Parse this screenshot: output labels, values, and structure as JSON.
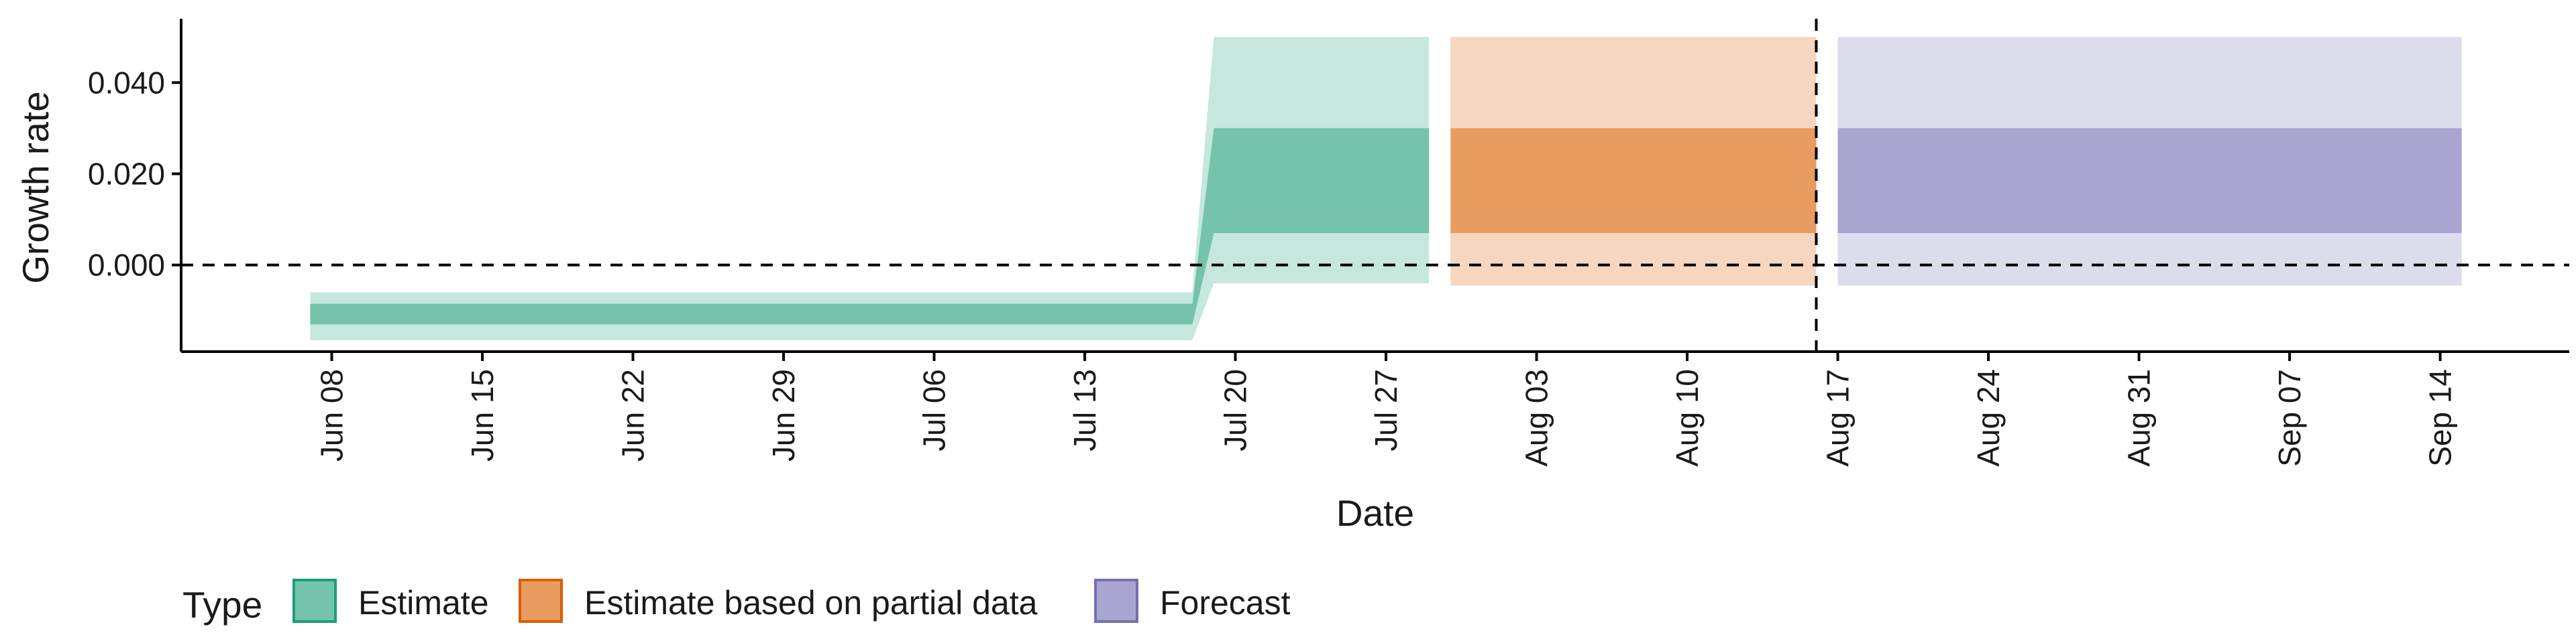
{
  "chart_data": {
    "type": "area",
    "title": "",
    "xlabel": "Date",
    "ylabel": "Growth rate",
    "xlim": [
      "2020-06-01",
      "2020-09-20"
    ],
    "ylim": [
      -0.019,
      0.054
    ],
    "y_ticks": [
      0.0,
      0.02,
      0.04
    ],
    "y_tick_labels": [
      "0.000",
      "0.020",
      "0.040"
    ],
    "x_ticks": [
      "2020-06-08",
      "2020-06-15",
      "2020-06-22",
      "2020-06-29",
      "2020-07-06",
      "2020-07-13",
      "2020-07-20",
      "2020-07-27",
      "2020-08-03",
      "2020-08-10",
      "2020-08-17",
      "2020-08-24",
      "2020-08-31",
      "2020-09-07",
      "2020-09-14"
    ],
    "x_tick_labels": [
      "Jun 08",
      "Jun 15",
      "Jun 22",
      "Jun 29",
      "Jul 06",
      "Jul 13",
      "Jul 20",
      "Jul 27",
      "Aug 03",
      "Aug 10",
      "Aug 17",
      "Aug 24",
      "Aug 31",
      "Sep 07",
      "Sep 14"
    ],
    "grid": false,
    "reference_lines": {
      "horizontal_y": 0.0,
      "vertical_x": "2020-08-16",
      "style": "dashed"
    },
    "legend": {
      "title": "Type",
      "position": "bottom-left",
      "items": [
        {
          "label": "Estimate",
          "fill": "#74c3aa",
          "border": "#1b9e77"
        },
        {
          "label": "Estimate based on partial data",
          "fill": "#e89c60",
          "border": "#d95f02"
        },
        {
          "label": "Forecast",
          "fill": "#a8a5d1",
          "border": "#7570b3"
        }
      ]
    },
    "series": [
      {
        "name": "Estimate",
        "outer_color": "#c5e7dd",
        "inner_color": "#74c3aa",
        "points": [
          {
            "x": "2020-06-07",
            "outer_low": -0.0165,
            "inner_low": -0.013,
            "inner_high": -0.0085,
            "outer_high": -0.006
          },
          {
            "x": "2020-07-18",
            "outer_low": -0.0165,
            "inner_low": -0.013,
            "inner_high": -0.0085,
            "outer_high": -0.006
          },
          {
            "x": "2020-07-19",
            "outer_low": -0.004,
            "inner_low": 0.007,
            "inner_high": 0.03,
            "outer_high": 0.05
          },
          {
            "x": "2020-07-29",
            "outer_low": -0.004,
            "inner_low": 0.007,
            "inner_high": 0.03,
            "outer_high": 0.05
          }
        ]
      },
      {
        "name": "Estimate based on partial data",
        "outer_color": "#f6d6bf",
        "inner_color": "#e89c60",
        "points": [
          {
            "x": "2020-07-30",
            "outer_low": -0.0045,
            "inner_low": 0.007,
            "inner_high": 0.03,
            "outer_high": 0.05
          },
          {
            "x": "2020-08-16",
            "outer_low": -0.0045,
            "inner_low": 0.007,
            "inner_high": 0.03,
            "outer_high": 0.05
          }
        ]
      },
      {
        "name": "Forecast",
        "outer_color": "#dddcec",
        "inner_color": "#a8a5d1",
        "points": [
          {
            "x": "2020-08-17",
            "outer_low": -0.0045,
            "inner_low": 0.007,
            "inner_high": 0.03,
            "outer_high": 0.05
          },
          {
            "x": "2020-09-15",
            "outer_low": -0.0045,
            "inner_low": 0.007,
            "inner_high": 0.03,
            "outer_high": 0.05
          }
        ]
      }
    ]
  }
}
